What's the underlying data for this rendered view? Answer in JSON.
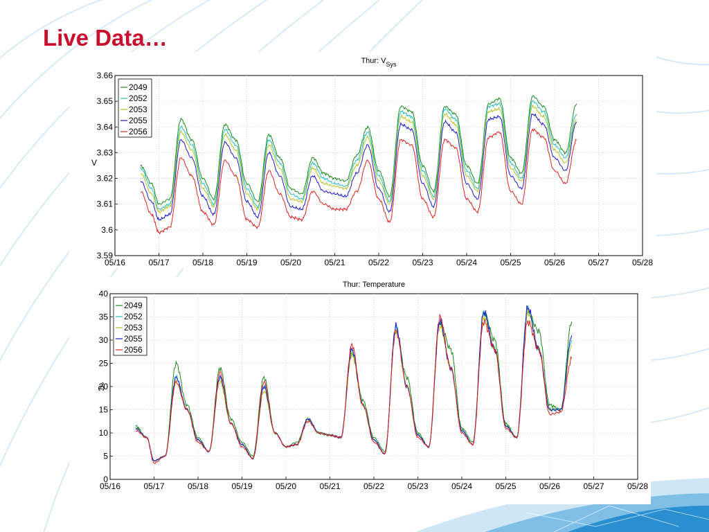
{
  "slide": {
    "title": "Live Data…",
    "colors": {
      "title": "#c8102e",
      "background_swirl": "#cfe6f5",
      "corner_graphic": "#2a8fd0"
    }
  },
  "chart_data": [
    {
      "type": "line",
      "title": "Thur: V",
      "title_subscript": "Sys",
      "ylabel": "V",
      "xlabel": "",
      "ylim": [
        3.59,
        3.66
      ],
      "yticks": [
        3.59,
        3.6,
        3.61,
        3.62,
        3.63,
        3.64,
        3.65,
        3.66
      ],
      "ytick_labels": [
        "3.59",
        "3.6",
        "3.61",
        "3.62",
        "3.63",
        "3.64",
        "3.65",
        "3.66"
      ],
      "xlim": [
        "05/16",
        "05/28"
      ],
      "xtick_labels": [
        "05/16",
        "05/17",
        "05/18",
        "05/19",
        "05/20",
        "05/21",
        "05/22",
        "05/23",
        "05/24",
        "05/25",
        "05/26",
        "05/27",
        "05/28"
      ],
      "grid": true,
      "legend_position": "top-left",
      "x": [
        "05/16 14:00",
        "05/16 20:00",
        "05/17 00:00",
        "05/17 06:00",
        "05/17 12:00",
        "05/17 18:00",
        "05/18 00:00",
        "05/18 06:00",
        "05/18 12:00",
        "05/18 18:00",
        "05/19 00:00",
        "05/19 06:00",
        "05/19 12:00",
        "05/19 18:00",
        "05/20 00:00",
        "05/20 06:00",
        "05/20 12:00",
        "05/20 18:00",
        "05/21 00:00",
        "05/21 06:00",
        "05/21 12:00",
        "05/21 18:00",
        "05/22 00:00",
        "05/22 06:00",
        "05/22 12:00",
        "05/22 18:00",
        "05/23 00:00",
        "05/23 06:00",
        "05/23 12:00",
        "05/23 18:00",
        "05/24 00:00",
        "05/24 06:00",
        "05/24 12:00",
        "05/24 18:00",
        "05/25 00:00",
        "05/25 06:00",
        "05/25 12:00",
        "05/25 18:00",
        "05/26 00:00",
        "05/26 06:00",
        "05/26 12:00"
      ],
      "series": [
        {
          "name": "2049",
          "color": "#1a8a1a",
          "values": [
            3.625,
            3.618,
            3.61,
            3.612,
            3.643,
            3.635,
            3.62,
            3.612,
            3.641,
            3.635,
            3.618,
            3.611,
            3.637,
            3.628,
            3.616,
            3.614,
            3.628,
            3.622,
            3.62,
            3.619,
            3.629,
            3.64,
            3.623,
            3.613,
            3.648,
            3.646,
            3.625,
            3.615,
            3.648,
            3.645,
            3.625,
            3.618,
            3.649,
            3.651,
            3.628,
            3.622,
            3.652,
            3.648,
            3.635,
            3.63,
            3.649
          ]
        },
        {
          "name": "2052",
          "color": "#20c0c0",
          "values": [
            3.624,
            3.616,
            3.608,
            3.61,
            3.64,
            3.633,
            3.618,
            3.61,
            3.639,
            3.633,
            3.616,
            3.609,
            3.635,
            3.626,
            3.614,
            3.612,
            3.626,
            3.62,
            3.618,
            3.617,
            3.627,
            3.638,
            3.621,
            3.611,
            3.646,
            3.644,
            3.623,
            3.613,
            3.647,
            3.643,
            3.623,
            3.616,
            3.648,
            3.649,
            3.626,
            3.62,
            3.65,
            3.646,
            3.633,
            3.628,
            3.645
          ]
        },
        {
          "name": "2053",
          "color": "#b8c020",
          "values": [
            3.622,
            3.614,
            3.607,
            3.609,
            3.638,
            3.631,
            3.616,
            3.609,
            3.637,
            3.631,
            3.614,
            3.608,
            3.633,
            3.624,
            3.612,
            3.611,
            3.624,
            3.618,
            3.617,
            3.616,
            3.625,
            3.636,
            3.619,
            3.61,
            3.644,
            3.642,
            3.621,
            3.612,
            3.645,
            3.641,
            3.621,
            3.615,
            3.646,
            3.647,
            3.624,
            3.619,
            3.648,
            3.644,
            3.631,
            3.626,
            3.643
          ]
        },
        {
          "name": "2055",
          "color": "#1a1ad0",
          "values": [
            3.619,
            3.611,
            3.604,
            3.606,
            3.635,
            3.628,
            3.613,
            3.606,
            3.634,
            3.628,
            3.611,
            3.605,
            3.63,
            3.621,
            3.609,
            3.608,
            3.621,
            3.615,
            3.614,
            3.613,
            3.622,
            3.633,
            3.616,
            3.607,
            3.641,
            3.639,
            3.618,
            3.609,
            3.642,
            3.638,
            3.618,
            3.612,
            3.643,
            3.644,
            3.621,
            3.616,
            3.645,
            3.641,
            3.628,
            3.623,
            3.642
          ]
        },
        {
          "name": "2056",
          "color": "#e02020",
          "values": [
            3.615,
            3.606,
            3.599,
            3.601,
            3.628,
            3.621,
            3.607,
            3.602,
            3.627,
            3.621,
            3.604,
            3.601,
            3.623,
            3.614,
            3.605,
            3.604,
            3.615,
            3.61,
            3.608,
            3.608,
            3.615,
            3.627,
            3.612,
            3.603,
            3.635,
            3.633,
            3.612,
            3.605,
            3.635,
            3.632,
            3.612,
            3.607,
            3.636,
            3.638,
            3.615,
            3.61,
            3.639,
            3.636,
            3.623,
            3.618,
            3.635
          ]
        }
      ]
    },
    {
      "type": "line",
      "title": "Thur: Temperature",
      "ylabel": "°C",
      "xlabel": "",
      "ylim": [
        0,
        40
      ],
      "yticks": [
        0,
        5,
        10,
        15,
        20,
        25,
        30,
        35,
        40
      ],
      "ytick_labels": [
        "0",
        "5",
        "10",
        "15",
        "20",
        "25",
        "30",
        "35",
        "40"
      ],
      "xlim": [
        "05/16",
        "05/28"
      ],
      "xtick_labels": [
        "05/16",
        "05/17",
        "05/18",
        "05/19",
        "05/20",
        "05/21",
        "05/22",
        "05/23",
        "05/24",
        "05/25",
        "05/26",
        "05/27",
        "05/28"
      ],
      "grid": true,
      "legend_position": "top-left",
      "x": [
        "05/16 14:00",
        "05/16 20:00",
        "05/17 00:00",
        "05/17 06:00",
        "05/17 12:00",
        "05/17 18:00",
        "05/18 00:00",
        "05/18 06:00",
        "05/18 12:00",
        "05/18 18:00",
        "05/19 00:00",
        "05/19 06:00",
        "05/19 12:00",
        "05/19 18:00",
        "05/20 00:00",
        "05/20 06:00",
        "05/20 12:00",
        "05/20 18:00",
        "05/21 00:00",
        "05/21 06:00",
        "05/21 12:00",
        "05/21 18:00",
        "05/22 00:00",
        "05/22 06:00",
        "05/22 12:00",
        "05/22 18:00",
        "05/23 00:00",
        "05/23 06:00",
        "05/23 12:00",
        "05/23 18:00",
        "05/24 00:00",
        "05/24 06:00",
        "05/24 12:00",
        "05/24 18:00",
        "05/25 00:00",
        "05/25 06:00",
        "05/25 12:00",
        "05/25 18:00",
        "05/26 00:00",
        "05/26 06:00",
        "05/26 12:00"
      ],
      "series": [
        {
          "name": "2049",
          "color": "#1a8a1a",
          "values": [
            11.5,
            9.0,
            4.0,
            5.0,
            25.0,
            16.0,
            9.0,
            6.0,
            24.0,
            13.0,
            8.0,
            5.0,
            22.0,
            10.0,
            7.0,
            8.0,
            13.0,
            10.0,
            9.5,
            9.0,
            27.0,
            17.0,
            9.0,
            6.0,
            32.0,
            22.0,
            10.0,
            7.0,
            34.0,
            28.0,
            11.0,
            8.0,
            36.0,
            30.0,
            12.0,
            9.0,
            36.0,
            32.0,
            16.0,
            15.0,
            34.0
          ]
        },
        {
          "name": "2052",
          "color": "#20c0c0",
          "values": [
            11.0,
            9.0,
            4.0,
            5.0,
            22.0,
            15.0,
            8.5,
            6.0,
            22.0,
            12.0,
            7.5,
            4.5,
            20.0,
            10.0,
            7.0,
            7.5,
            13.0,
            10.0,
            9.5,
            9.0,
            28.0,
            16.0,
            8.5,
            5.5,
            33.0,
            20.0,
            9.5,
            7.0,
            34.0,
            24.0,
            10.5,
            7.5,
            36.0,
            28.0,
            11.5,
            9.0,
            37.0,
            28.0,
            15.0,
            15.0,
            30.0
          ]
        },
        {
          "name": "2053",
          "color": "#b8c020",
          "values": [
            11.0,
            9.0,
            4.0,
            5.0,
            21.0,
            15.0,
            8.5,
            6.0,
            21.0,
            12.0,
            7.5,
            4.5,
            19.0,
            10.0,
            7.0,
            7.5,
            13.0,
            10.0,
            9.5,
            9.0,
            27.0,
            16.0,
            8.5,
            5.5,
            32.0,
            20.0,
            9.5,
            7.0,
            33.0,
            24.0,
            10.5,
            7.5,
            35.0,
            28.0,
            11.5,
            9.0,
            36.0,
            28.0,
            15.0,
            15.0,
            29.0
          ]
        },
        {
          "name": "2055",
          "color": "#1a1ad0",
          "values": [
            11.0,
            9.0,
            4.0,
            5.0,
            22.0,
            15.0,
            8.5,
            6.0,
            22.0,
            12.0,
            7.5,
            4.5,
            20.0,
            10.0,
            7.0,
            7.5,
            13.0,
            10.0,
            9.5,
            9.0,
            28.0,
            16.0,
            8.5,
            5.5,
            33.0,
            20.0,
            9.5,
            7.0,
            34.0,
            24.0,
            10.5,
            7.5,
            36.0,
            28.0,
            11.5,
            9.0,
            37.0,
            28.0,
            15.0,
            15.0,
            31.0
          ]
        },
        {
          "name": "2056",
          "color": "#e02020",
          "values": [
            10.5,
            9.0,
            3.5,
            5.0,
            21.0,
            15.0,
            8.0,
            6.0,
            23.0,
            12.0,
            7.0,
            4.5,
            21.0,
            10.0,
            7.0,
            7.5,
            12.5,
            10.0,
            9.5,
            9.0,
            29.0,
            16.0,
            8.0,
            5.5,
            32.0,
            20.0,
            9.0,
            7.0,
            35.0,
            24.0,
            10.0,
            7.5,
            34.0,
            28.0,
            11.0,
            9.0,
            34.0,
            28.0,
            14.0,
            14.5,
            26.0
          ]
        }
      ]
    }
  ]
}
